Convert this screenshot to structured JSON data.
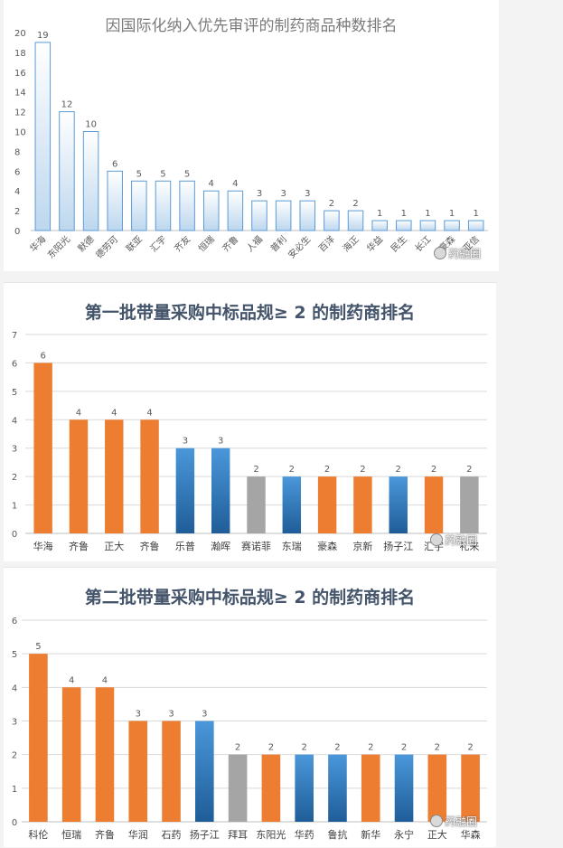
{
  "chart_data": [
    {
      "type": "bar",
      "title": "因国际化纳入优先审评的制药商品种数排名",
      "categories": [
        "华海",
        "东阳光",
        "默德",
        "德劳可",
        "联亚",
        "汇宇",
        "齐友",
        "恒瑞",
        "齐鲁",
        "人福",
        "普利",
        "安必生",
        "百洋",
        "海正",
        "华益",
        "民生",
        "长江",
        "豪森",
        "亚信"
      ],
      "values": [
        19,
        12,
        10,
        6,
        5,
        5,
        5,
        4,
        4,
        3,
        3,
        3,
        2,
        2,
        1,
        1,
        1,
        1,
        1
      ],
      "ylim": [
        0,
        20
      ],
      "yticks": [
        0,
        2,
        4,
        6,
        8,
        10,
        12,
        14,
        16,
        18,
        20
      ],
      "grid": false,
      "colors": {
        "fill_top": "#ffffff",
        "fill_bottom": "#bdd7ee",
        "stroke": "#5b9bd5"
      },
      "watermark": "药融圈"
    },
    {
      "type": "bar",
      "title": "第一批带量采购中标品规≥ 2 的制药商排名",
      "categories": [
        "华海",
        "齐鲁",
        "正大",
        "齐鲁",
        "乐普",
        "瀚晖",
        "赛诺菲",
        "东瑞",
        "豪森",
        "京新",
        "扬子江",
        "汇宇",
        "礼来"
      ],
      "values": [
        6,
        4,
        4,
        4,
        3,
        3,
        2,
        2,
        2,
        2,
        2,
        2,
        2
      ],
      "bar_colors": [
        "orange",
        "orange",
        "orange",
        "orange",
        "blue",
        "blue",
        "gray",
        "blue",
        "orange",
        "orange",
        "blue",
        "orange",
        "gray"
      ],
      "ylim": [
        0,
        7
      ],
      "yticks": [
        0,
        1,
        2,
        3,
        4,
        5,
        6,
        7
      ],
      "grid": true,
      "colors": {
        "orange": "#ed7d31",
        "blue": "#2e75b6",
        "gray": "#a5a5a5"
      },
      "watermark": "药融圈"
    },
    {
      "type": "bar",
      "title": "第二批带量采购中标品规≥ 2 的制药商排名",
      "categories": [
        "科伦",
        "恒瑞",
        "齐鲁",
        "华润",
        "石药",
        "扬子江",
        "拜耳",
        "东阳光",
        "华药",
        "鲁抗",
        "新华",
        "永宁",
        "正大",
        "华森"
      ],
      "values": [
        5,
        4,
        4,
        3,
        3,
        3,
        2,
        2,
        2,
        2,
        2,
        2,
        2,
        2
      ],
      "bar_colors": [
        "orange",
        "orange",
        "orange",
        "orange",
        "orange",
        "blue",
        "gray",
        "orange",
        "blue",
        "blue",
        "orange",
        "blue",
        "orange",
        "orange"
      ],
      "ylim": [
        0,
        6
      ],
      "yticks": [
        0,
        1,
        2,
        3,
        4,
        5,
        6
      ],
      "grid": true,
      "colors": {
        "orange": "#ed7d31",
        "blue": "#2e75b6",
        "gray": "#a5a5a5"
      },
      "watermark": "药融圈"
    }
  ]
}
